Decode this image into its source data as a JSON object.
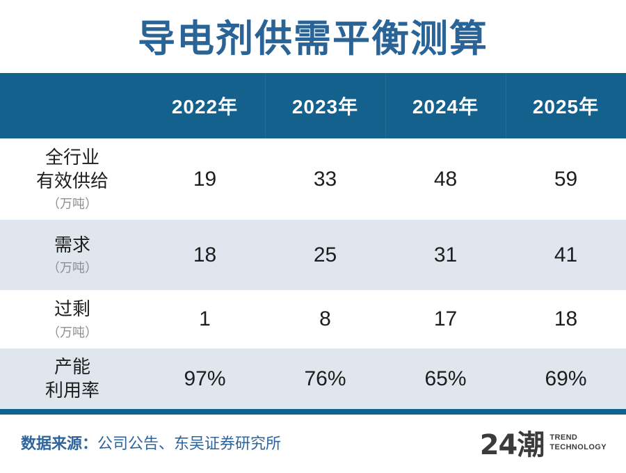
{
  "title": "导电剂供需平衡测算",
  "chart_data": {
    "type": "table",
    "title": "导电剂供需平衡测算",
    "columns": [
      "2022年",
      "2023年",
      "2024年",
      "2025年"
    ],
    "rows": [
      {
        "label": "全行业有效供给",
        "unit": "万吨",
        "values": [
          19,
          33,
          48,
          59
        ]
      },
      {
        "label": "需求",
        "unit": "万吨",
        "values": [
          18,
          25,
          31,
          41
        ]
      },
      {
        "label": "过剩",
        "unit": "万吨",
        "values": [
          1,
          8,
          17,
          18
        ]
      },
      {
        "label": "产能利用率",
        "unit": "%",
        "values": [
          "97%",
          "76%",
          "65%",
          "69%"
        ]
      }
    ],
    "source": "公司公告、东吴证券研究所"
  },
  "table": {
    "columns": [
      "2022年",
      "2023年",
      "2024年",
      "2025年"
    ],
    "rows": [
      {
        "label_lines": [
          "全行业",
          "有效供给"
        ],
        "unit": "（万吨）",
        "values": [
          "19",
          "33",
          "48",
          "59"
        ],
        "shaded": false
      },
      {
        "label_lines": [
          "需求"
        ],
        "unit": "（万吨）",
        "values": [
          "18",
          "25",
          "31",
          "41"
        ],
        "shaded": true
      },
      {
        "label_lines": [
          "过剩"
        ],
        "unit": "（万吨）",
        "values": [
          "1",
          "8",
          "17",
          "18"
        ],
        "shaded": false
      },
      {
        "label_lines": [
          "产能",
          "利用率"
        ],
        "values": [
          "97%",
          "76%",
          "65%",
          "69%"
        ],
        "shaded": true
      }
    ]
  },
  "footer": {
    "source_label": "数据来源：",
    "source_text": "公司公告、东吴证券研究所",
    "logo_text": "24潮",
    "logo_sub1": "TREND",
    "logo_sub2": "TECHNOLOGY"
  },
  "colors": {
    "header_bg": "#15618E",
    "shaded_row_bg": "#DFE6EE",
    "accent_bar": "#0F618F",
    "title_text": "#2A6396",
    "footer_text": "#2D649B",
    "unit_text": "#8E8E8E",
    "body_text": "#1D1D1D",
    "logo_text": "#3B3B3B"
  }
}
